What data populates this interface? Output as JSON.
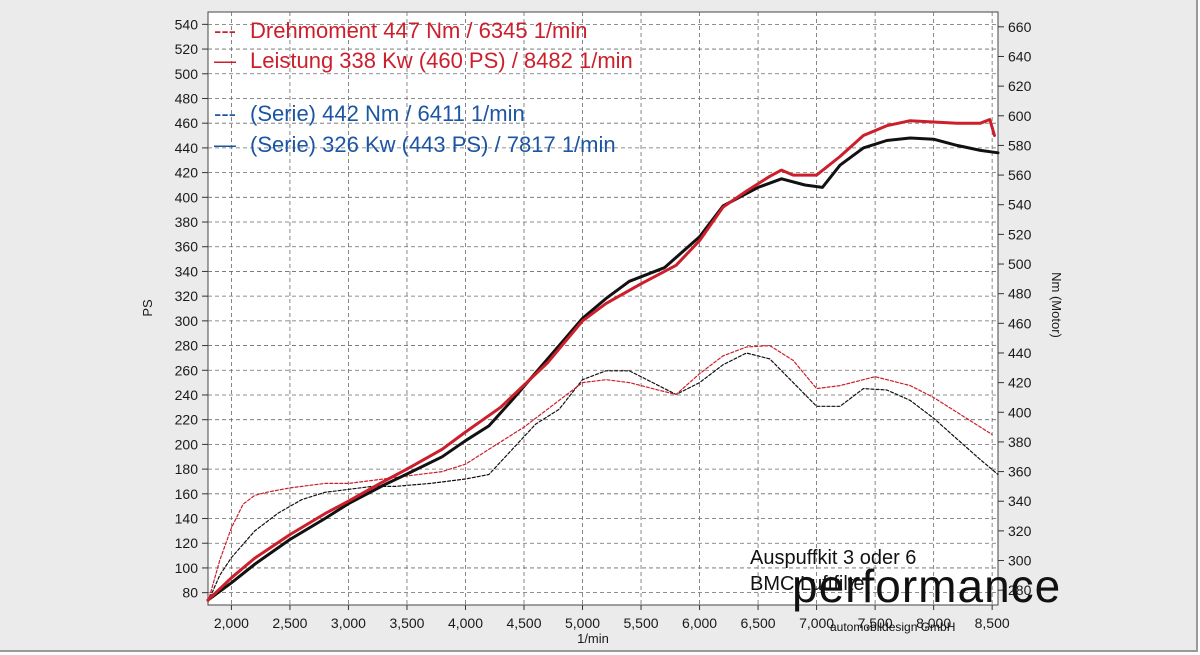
{
  "chart_data": {
    "type": "line",
    "xlabel": "1/min",
    "ylabel": "PS",
    "y2label": "Nm (Motor)",
    "xlim": [
      1800,
      8550
    ],
    "ylim": [
      70,
      550
    ],
    "y2lim": [
      270,
      670
    ],
    "x_ticks": [
      2000,
      2500,
      3000,
      3500,
      4000,
      4500,
      5000,
      5500,
      6000,
      6500,
      7000,
      7500,
      8000,
      8500
    ],
    "x_tick_labels": [
      "2,000",
      "2,500",
      "3,000",
      "3,500",
      "4,000",
      "4,500",
      "5,000",
      "5,500",
      "6,000",
      "6,500",
      "7,000",
      "7,500",
      "8,000",
      "8,500"
    ],
    "y_ticks": [
      80,
      100,
      120,
      140,
      160,
      180,
      200,
      220,
      240,
      260,
      280,
      300,
      320,
      340,
      360,
      380,
      400,
      420,
      440,
      460,
      480,
      500,
      520,
      540
    ],
    "y2_ticks": [
      280,
      300,
      320,
      340,
      360,
      380,
      400,
      420,
      440,
      460,
      480,
      500,
      520,
      540,
      560,
      580,
      600,
      620,
      640,
      660
    ],
    "grid": true,
    "legend_position": "top-left",
    "series": [
      {
        "name": "Drehmoment 447 Nm / 6345 1/min",
        "axis": "right",
        "style": "dashed",
        "color": "#cc1f2b",
        "x": [
          1800,
          1900,
          2000,
          2100,
          2200,
          2300,
          2500,
          2800,
          3000,
          3300,
          3500,
          3800,
          4000,
          4200,
          4500,
          4700,
          5000,
          5200,
          5400,
          5600,
          5800,
          6000,
          6200,
          6400,
          6600,
          6800,
          7000,
          7200,
          7500,
          7800,
          8000,
          8200,
          8400,
          8500
        ],
        "y": [
          272,
          300,
          322,
          338,
          344,
          346,
          349,
          352,
          352,
          355,
          357,
          360,
          365,
          375,
          390,
          402,
          420,
          422,
          420,
          416,
          412,
          426,
          438,
          444,
          445,
          435,
          416,
          418,
          424,
          418,
          410,
          400,
          390,
          385
        ]
      },
      {
        "name": "Leistung 338 Kw (460 PS) / 8482 1/min",
        "axis": "left",
        "style": "solid",
        "color": "#cc1f2b",
        "x": [
          1800,
          2000,
          2200,
          2500,
          2800,
          3000,
          3300,
          3500,
          3800,
          4000,
          4300,
          4500,
          4700,
          5000,
          5200,
          5500,
          5800,
          6000,
          6200,
          6400,
          6600,
          6700,
          6800,
          7000,
          7200,
          7400,
          7600,
          7800,
          8000,
          8200,
          8400,
          8480,
          8520
        ],
        "y": [
          74,
          92,
          108,
          127,
          144,
          154,
          170,
          180,
          196,
          210,
          230,
          248,
          266,
          300,
          314,
          330,
          345,
          365,
          392,
          405,
          417,
          422,
          418,
          418,
          433,
          450,
          458,
          462,
          461,
          460,
          460,
          463,
          450
        ]
      },
      {
        "name": "(Serie) 442 Nm / 6411 1/min",
        "axis": "right",
        "style": "dashed",
        "color": "#111111",
        "x": [
          1800,
          1900,
          2000,
          2200,
          2400,
          2600,
          2800,
          3000,
          3200,
          3400,
          3700,
          4000,
          4200,
          4400,
          4600,
          4800,
          5000,
          5200,
          5400,
          5600,
          5800,
          6000,
          6200,
          6400,
          6600,
          6800,
          7000,
          7200,
          7400,
          7600,
          7800,
          8000,
          8200,
          8400,
          8550
        ],
        "y": [
          272,
          290,
          302,
          320,
          332,
          341,
          346,
          348,
          350,
          350,
          352,
          355,
          358,
          375,
          392,
          402,
          422,
          428,
          428,
          420,
          412,
          420,
          432,
          440,
          436,
          420,
          404,
          404,
          416,
          415,
          408,
          396,
          382,
          368,
          358
        ]
      },
      {
        "name": "(Serie) 326 Kw (443 PS) / 7817 1/min",
        "axis": "left",
        "style": "solid",
        "color": "#111111",
        "x": [
          1800,
          2000,
          2200,
          2500,
          2800,
          3000,
          3300,
          3500,
          3800,
          4000,
          4200,
          4400,
          4600,
          4800,
          5000,
          5200,
          5400,
          5700,
          6000,
          6200,
          6400,
          6500,
          6700,
          6900,
          7050,
          7200,
          7400,
          7600,
          7800,
          8000,
          8200,
          8400,
          8550
        ],
        "y": [
          74,
          88,
          103,
          123,
          140,
          152,
          167,
          176,
          190,
          203,
          215,
          236,
          258,
          280,
          302,
          318,
          332,
          343,
          368,
          393,
          403,
          408,
          415,
          410,
          408,
          426,
          440,
          446,
          448,
          447,
          442,
          438,
          436
        ]
      }
    ],
    "annotations": [
      "Auspuffkit 3 oder 6",
      "BMC Luftfilter",
      "automobildesign GmbH"
    ],
    "brand": "performance"
  }
}
